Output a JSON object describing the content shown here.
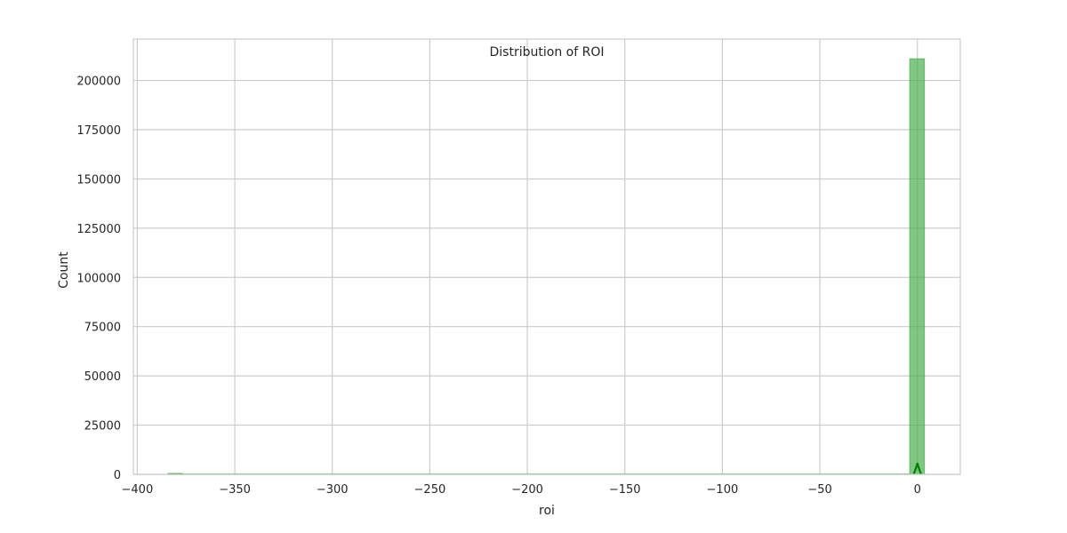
{
  "chart_data": {
    "type": "bar",
    "title": "Distribution of ROI",
    "xlabel": "roi",
    "ylabel": "Count",
    "xlim": [
      -402,
      22
    ],
    "ylim": [
      0,
      221000
    ],
    "x_ticks": [
      -400,
      -350,
      -300,
      -250,
      -200,
      -150,
      -100,
      -50,
      0
    ],
    "x_tick_labels": [
      "−400",
      "−350",
      "−300",
      "−250",
      "−200",
      "−150",
      "−100",
      "−50",
      "0"
    ],
    "y_ticks": [
      0,
      25000,
      50000,
      75000,
      100000,
      125000,
      150000,
      175000,
      200000
    ],
    "y_tick_labels": [
      "0",
      "25000",
      "50000",
      "75000",
      "100000",
      "125000",
      "150000",
      "175000",
      "200000"
    ],
    "grid": true,
    "series": [
      {
        "bins": [
          {
            "x0": -384.3,
            "x1": -376.9,
            "count": 3
          },
          {
            "x0": -3.9,
            "x1": 3.6,
            "count": 211000
          }
        ]
      }
    ],
    "kde_peak_value": 5500,
    "colors": {
      "bar_fill": "#4caf50",
      "bar_stroke": "#4caf50",
      "kde": "#008000",
      "grid": "#cccccc",
      "frame": "#cccccc"
    }
  }
}
